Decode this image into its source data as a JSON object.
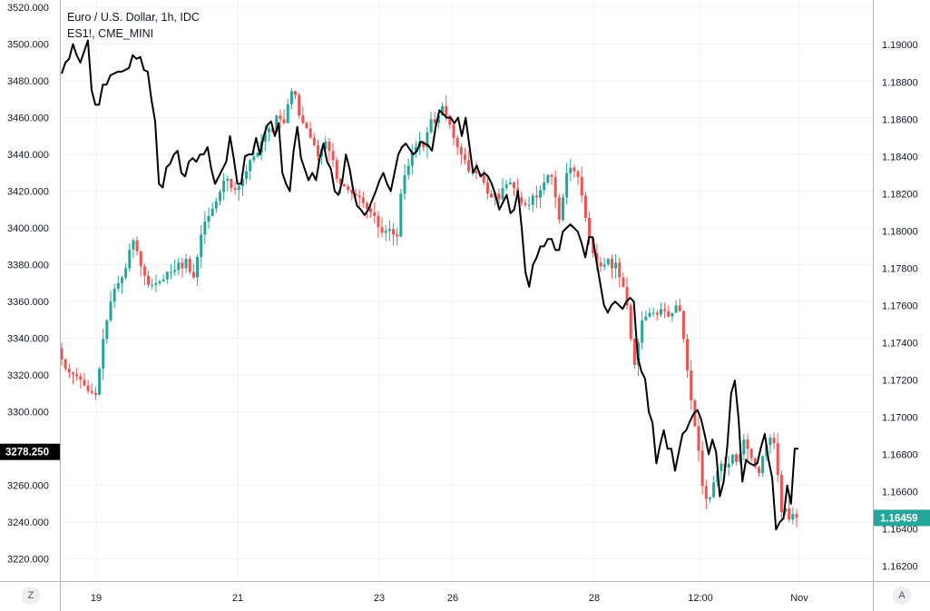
{
  "legend": {
    "main": "Euro / U.S. Dollar, 1h, IDC",
    "compare": "ES1!, CME_MINI"
  },
  "buttons": {
    "left": "Z",
    "right": "A"
  },
  "colors": {
    "up": "#26a69a",
    "down": "#ef5350",
    "line": "#000000",
    "grid": "#f0f3fa",
    "axis": "#b2b5be",
    "lastPriceBadge": "#26a69a",
    "leftBadge": "#000000"
  },
  "chart_data": {
    "type": "candlestick+line",
    "x_ticks": [
      "19",
      "21",
      "23",
      "26",
      "28",
      "12:00",
      "Nov"
    ],
    "left_axis": {
      "ticks": [
        "3520.000",
        "3500.000",
        "3480.000",
        "3460.000",
        "3440.000",
        "3420.000",
        "3400.000",
        "3380.000",
        "3360.000",
        "3340.000",
        "3320.000",
        "3300.000",
        "3260.000",
        "3240.000",
        "3220.000"
      ],
      "range": [
        3208,
        3524
      ],
      "badge": "3278.250"
    },
    "right_axis": {
      "ticks": [
        "1.19000",
        "1.18800",
        "1.18600",
        "1.18400",
        "1.18200",
        "1.18000",
        "1.17800",
        "1.17600",
        "1.17400",
        "1.17200",
        "1.17000",
        "1.16800",
        "1.16600",
        "1.16400",
        "1.16200"
      ],
      "range": [
        1.1612,
        1.1924
      ],
      "badge": "1.16459"
    },
    "eurusd_close": [
      1.1731,
      1.1726,
      1.1724,
      1.1723,
      1.1722,
      1.172,
      1.1717,
      1.1714,
      1.1713,
      1.1712,
      1.1726,
      1.1742,
      1.1752,
      1.1762,
      1.1769,
      1.1772,
      1.1775,
      1.178,
      1.179,
      1.1795,
      1.1789,
      1.1781,
      1.1776,
      1.1771,
      1.1771,
      1.1772,
      1.1773,
      1.1774,
      1.1778,
      1.1778,
      1.1779,
      1.1783,
      1.178,
      1.1785,
      1.1778,
      1.1775,
      1.1786,
      1.1798,
      1.1805,
      1.1808,
      1.1812,
      1.1816,
      1.1821,
      1.1827,
      1.1828,
      1.1823,
      1.1822,
      1.1824,
      1.1828,
      1.1832,
      1.1838,
      1.184,
      1.1842,
      1.1848,
      1.1853,
      1.1855,
      1.1853,
      1.1862,
      1.186,
      1.1858,
      1.1868,
      1.1875,
      1.1873,
      1.1862,
      1.1858,
      1.1855,
      1.185,
      1.1846,
      1.184,
      1.1844,
      1.1848,
      1.1843,
      1.1838,
      1.1828,
      1.1825,
      1.1824,
      1.1822,
      1.182,
      1.1819,
      1.1818,
      1.1815,
      1.1812,
      1.181,
      1.1808,
      1.1802,
      1.1799,
      1.18,
      1.1801,
      1.1798,
      1.1797,
      1.182,
      1.183,
      1.1835,
      1.1842,
      1.1845,
      1.1848,
      1.1845,
      1.1853,
      1.186,
      1.1858,
      1.1862,
      1.1867,
      1.1862,
      1.1857,
      1.185,
      1.1845,
      1.1841,
      1.1838,
      1.1832,
      1.1832,
      1.1831,
      1.183,
      1.1826,
      1.182,
      1.1818,
      1.182,
      1.1817,
      1.1823,
      1.1825,
      1.1826,
      1.1823,
      1.1818,
      1.1815,
      1.1814,
      1.1814,
      1.1819,
      1.1818,
      1.1822,
      1.1826,
      1.183,
      1.1829,
      1.1818,
      1.1806,
      1.1818,
      1.1831,
      1.1834,
      1.1832,
      1.1829,
      1.1819,
      1.1807,
      1.1796,
      1.1788,
      1.1783,
      1.1781,
      1.1782,
      1.1785,
      1.178,
      1.1783,
      1.1775,
      1.177,
      1.176,
      1.1742,
      1.1728,
      1.174,
      1.1752,
      1.1754,
      1.1756,
      1.1756,
      1.1755,
      1.1758,
      1.1757,
      1.1754,
      1.1756,
      1.176,
      1.1757,
      1.1742,
      1.1725,
      1.1709,
      1.1695,
      1.1682,
      1.1663,
      1.1656,
      1.1657,
      1.1665,
      1.1671,
      1.1675,
      1.1673,
      1.1675,
      1.168,
      1.1676,
      1.168,
      1.1688,
      1.1683,
      1.1678,
      1.1673,
      1.167,
      1.1679,
      1.1685,
      1.1689,
      1.1686,
      1.1669,
      1.1649,
      1.1651,
      1.1645,
      1.1648,
      1.1646
    ],
    "es_close": [
      3484,
      3490,
      3492,
      3500,
      3494,
      3490,
      3496,
      3502,
      3475,
      3467,
      3467,
      3478,
      3478,
      3483,
      3484,
      3485,
      3485,
      3486,
      3487,
      3494,
      3492,
      3493,
      3486,
      3485,
      3470,
      3458,
      3424,
      3422,
      3433,
      3435,
      3440,
      3442,
      3430,
      3428,
      3436,
      3438,
      3436,
      3440,
      3440,
      3444,
      3432,
      3424,
      3428,
      3432,
      3436,
      3450,
      3438,
      3424,
      3424,
      3439,
      3440,
      3440,
      3449,
      3440,
      3450,
      3456,
      3458,
      3450,
      3457,
      3430,
      3424,
      3420,
      3442,
      3455,
      3438,
      3432,
      3426,
      3430,
      3426,
      3438,
      3446,
      3436,
      3432,
      3420,
      3418,
      3425,
      3440,
      3432,
      3420,
      3412,
      3410,
      3407,
      3410,
      3415,
      3420,
      3426,
      3430,
      3424,
      3420,
      3430,
      3440,
      3444,
      3446,
      3443,
      3440,
      3442,
      3447,
      3446,
      3445,
      3442,
      3455,
      3464,
      3462,
      3460,
      3460,
      3457,
      3460,
      3450,
      3460,
      3445,
      3430,
      3434,
      3428,
      3430,
      3428,
      3424,
      3418,
      3410,
      3414,
      3418,
      3408,
      3410,
      3420,
      3400,
      3376,
      3368,
      3380,
      3384,
      3390,
      3390,
      3394,
      3394,
      3388,
      3388,
      3398,
      3400,
      3402,
      3400,
      3398,
      3392,
      3384,
      3395,
      3395,
      3382,
      3370,
      3358,
      3354,
      3358,
      3360,
      3358,
      3356,
      3360,
      3362,
      3360,
      3330,
      3322,
      3318,
      3300,
      3294,
      3272,
      3282,
      3290,
      3280,
      3280,
      3268,
      3278,
      3288,
      3290,
      3295,
      3299,
      3301,
      3296,
      3287,
      3277,
      3285,
      3278,
      3254,
      3262,
      3282,
      3310,
      3317,
      3296,
      3262,
      3274,
      3272,
      3271,
      3272,
      3281,
      3288,
      3274,
      3264,
      3236,
      3240,
      3242,
      3260,
      3250,
      3280,
      3280
    ]
  }
}
